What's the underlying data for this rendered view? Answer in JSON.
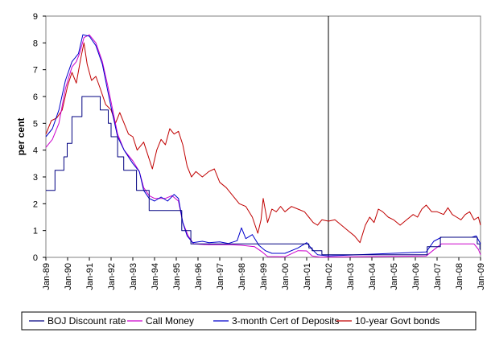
{
  "chart_data": {
    "type": "line",
    "title": "",
    "xlabel": "",
    "ylabel": "per cent",
    "ylim": [
      0,
      9
    ],
    "yticks": [
      "0",
      "1",
      "2",
      "3",
      "4",
      "5",
      "6",
      "7",
      "8",
      "9"
    ],
    "xlim": [
      1989.0,
      2009.0
    ],
    "xticks": [
      "Jan-89",
      "Jan-90",
      "Jan-91",
      "Jan-92",
      "Jan-93",
      "Jan-94",
      "Jan-95",
      "Jan-96",
      "Jan-97",
      "Jan-98",
      "Jan-99",
      "Jan-00",
      "Jan-01",
      "Jan-02",
      "Jan-03",
      "Jan-04",
      "Jan-05",
      "Jan-06",
      "Jan-07",
      "Jan-08",
      "Jan-09"
    ],
    "grid": false,
    "vertical_marker_x": 2002.0,
    "legend_position": "bottom",
    "series": [
      {
        "name": "BOJ Discount rate",
        "color": "#000080",
        "step": true,
        "points": [
          [
            1989.0,
            2.5
          ],
          [
            1989.42,
            3.25
          ],
          [
            1989.83,
            3.75
          ],
          [
            1989.98,
            4.25
          ],
          [
            1990.2,
            5.25
          ],
          [
            1990.66,
            6.0
          ],
          [
            1991.5,
            5.5
          ],
          [
            1991.87,
            5.0
          ],
          [
            1992.0,
            4.5
          ],
          [
            1992.3,
            3.75
          ],
          [
            1992.58,
            3.25
          ],
          [
            1993.17,
            2.5
          ],
          [
            1993.75,
            1.75
          ],
          [
            1995.25,
            1.0
          ],
          [
            1995.67,
            0.5
          ],
          [
            2001.1,
            0.35
          ],
          [
            2001.25,
            0.25
          ],
          [
            2001.7,
            0.1
          ],
          [
            2006.55,
            0.4
          ],
          [
            2007.15,
            0.75
          ],
          [
            2008.85,
            0.5
          ],
          [
            2008.97,
            0.3
          ],
          [
            2009.0,
            0.3
          ]
        ]
      },
      {
        "name": "Call Money",
        "color": "#cc00cc",
        "step": false,
        "points": [
          [
            1989.0,
            4.1
          ],
          [
            1989.3,
            4.4
          ],
          [
            1989.6,
            5.0
          ],
          [
            1989.9,
            6.3
          ],
          [
            1990.2,
            7.1
          ],
          [
            1990.4,
            7.3
          ],
          [
            1990.55,
            7.6
          ],
          [
            1990.75,
            8.2
          ],
          [
            1991.0,
            8.3
          ],
          [
            1991.3,
            8.0
          ],
          [
            1991.6,
            7.3
          ],
          [
            1991.85,
            6.4
          ],
          [
            1992.0,
            5.8
          ],
          [
            1992.3,
            4.6
          ],
          [
            1992.6,
            4.0
          ],
          [
            1993.0,
            3.6
          ],
          [
            1993.3,
            3.2
          ],
          [
            1993.5,
            2.6
          ],
          [
            1993.75,
            2.3
          ],
          [
            1994.0,
            2.2
          ],
          [
            1994.5,
            2.2
          ],
          [
            1994.8,
            2.3
          ],
          [
            1995.1,
            2.1
          ],
          [
            1995.3,
            1.3
          ],
          [
            1995.55,
            0.8
          ],
          [
            1995.8,
            0.5
          ],
          [
            1996.5,
            0.47
          ],
          [
            1997.5,
            0.47
          ],
          [
            1998.0,
            0.45
          ],
          [
            1998.6,
            0.4
          ],
          [
            1998.95,
            0.2
          ],
          [
            1999.2,
            0.03
          ],
          [
            2000.0,
            0.02
          ],
          [
            2000.6,
            0.25
          ],
          [
            2001.0,
            0.24
          ],
          [
            2001.25,
            0.05
          ],
          [
            2001.6,
            0.01
          ],
          [
            2006.5,
            0.05
          ],
          [
            2006.8,
            0.25
          ],
          [
            2007.2,
            0.5
          ],
          [
            2008.7,
            0.5
          ],
          [
            2008.9,
            0.3
          ],
          [
            2009.0,
            0.1
          ]
        ]
      },
      {
        "name": "3-month Cert of Deposits",
        "color": "#0000cc",
        "step": false,
        "points": [
          [
            1989.0,
            4.5
          ],
          [
            1989.3,
            4.8
          ],
          [
            1989.6,
            5.5
          ],
          [
            1989.9,
            6.6
          ],
          [
            1990.2,
            7.3
          ],
          [
            1990.5,
            7.6
          ],
          [
            1990.7,
            8.3
          ],
          [
            1991.0,
            8.25
          ],
          [
            1991.3,
            7.9
          ],
          [
            1991.6,
            7.2
          ],
          [
            1991.85,
            6.2
          ],
          [
            1992.0,
            5.6
          ],
          [
            1992.3,
            4.5
          ],
          [
            1992.6,
            4.0
          ],
          [
            1993.0,
            3.5
          ],
          [
            1993.3,
            3.2
          ],
          [
            1993.5,
            2.5
          ],
          [
            1993.75,
            2.2
          ],
          [
            1994.0,
            2.1
          ],
          [
            1994.3,
            2.25
          ],
          [
            1994.6,
            2.1
          ],
          [
            1994.9,
            2.35
          ],
          [
            1995.1,
            2.2
          ],
          [
            1995.3,
            1.3
          ],
          [
            1995.5,
            0.8
          ],
          [
            1995.75,
            0.55
          ],
          [
            1996.2,
            0.6
          ],
          [
            1996.5,
            0.55
          ],
          [
            1997.0,
            0.58
          ],
          [
            1997.4,
            0.52
          ],
          [
            1997.8,
            0.62
          ],
          [
            1998.0,
            1.1
          ],
          [
            1998.2,
            0.7
          ],
          [
            1998.5,
            0.85
          ],
          [
            1998.8,
            0.45
          ],
          [
            1999.1,
            0.25
          ],
          [
            1999.4,
            0.15
          ],
          [
            2000.0,
            0.15
          ],
          [
            2000.6,
            0.35
          ],
          [
            2001.0,
            0.55
          ],
          [
            2001.25,
            0.3
          ],
          [
            2001.5,
            0.1
          ],
          [
            2002.0,
            0.05
          ],
          [
            2006.5,
            0.2
          ],
          [
            2006.85,
            0.6
          ],
          [
            2007.2,
            0.75
          ],
          [
            2008.6,
            0.75
          ],
          [
            2008.8,
            0.8
          ],
          [
            2009.0,
            0.5
          ]
        ]
      },
      {
        "name": "10-year Govt bonds",
        "color": "#c00000",
        "step": false,
        "points": [
          [
            1989.0,
            4.6
          ],
          [
            1989.25,
            5.1
          ],
          [
            1989.5,
            5.2
          ],
          [
            1989.75,
            5.5
          ],
          [
            1990.0,
            6.4
          ],
          [
            1990.2,
            6.9
          ],
          [
            1990.4,
            6.5
          ],
          [
            1990.6,
            7.4
          ],
          [
            1990.75,
            8.0
          ],
          [
            1990.9,
            7.2
          ],
          [
            1991.1,
            6.6
          ],
          [
            1991.3,
            6.75
          ],
          [
            1991.5,
            6.3
          ],
          [
            1991.75,
            5.7
          ],
          [
            1992.0,
            5.5
          ],
          [
            1992.2,
            5.0
          ],
          [
            1992.4,
            5.4
          ],
          [
            1992.6,
            5.0
          ],
          [
            1992.8,
            4.6
          ],
          [
            1993.0,
            4.5
          ],
          [
            1993.2,
            4.0
          ],
          [
            1993.5,
            4.3
          ],
          [
            1993.7,
            3.8
          ],
          [
            1993.9,
            3.3
          ],
          [
            1994.1,
            4.0
          ],
          [
            1994.3,
            4.4
          ],
          [
            1994.5,
            4.2
          ],
          [
            1994.7,
            4.8
          ],
          [
            1994.9,
            4.6
          ],
          [
            1995.1,
            4.7
          ],
          [
            1995.3,
            4.2
          ],
          [
            1995.5,
            3.4
          ],
          [
            1995.7,
            3.0
          ],
          [
            1995.9,
            3.2
          ],
          [
            1996.2,
            3.0
          ],
          [
            1996.5,
            3.2
          ],
          [
            1996.75,
            3.3
          ],
          [
            1997.0,
            2.8
          ],
          [
            1997.3,
            2.6
          ],
          [
            1997.6,
            2.3
          ],
          [
            1997.9,
            2.0
          ],
          [
            1998.2,
            1.9
          ],
          [
            1998.5,
            1.5
          ],
          [
            1998.75,
            0.9
          ],
          [
            1998.9,
            1.4
          ],
          [
            1999.0,
            2.2
          ],
          [
            1999.2,
            1.3
          ],
          [
            1999.4,
            1.8
          ],
          [
            1999.6,
            1.7
          ],
          [
            1999.8,
            1.9
          ],
          [
            2000.0,
            1.7
          ],
          [
            2000.3,
            1.9
          ],
          [
            2000.6,
            1.8
          ],
          [
            2000.9,
            1.7
          ],
          [
            2001.1,
            1.5
          ],
          [
            2001.3,
            1.3
          ],
          [
            2001.5,
            1.2
          ],
          [
            2001.7,
            1.4
          ],
          [
            2002.0,
            1.35
          ],
          [
            2002.3,
            1.4
          ],
          [
            2002.6,
            1.2
          ],
          [
            2002.9,
            1.0
          ],
          [
            2003.2,
            0.8
          ],
          [
            2003.45,
            0.55
          ],
          [
            2003.7,
            1.2
          ],
          [
            2003.9,
            1.5
          ],
          [
            2004.1,
            1.3
          ],
          [
            2004.3,
            1.8
          ],
          [
            2004.5,
            1.7
          ],
          [
            2004.75,
            1.5
          ],
          [
            2005.0,
            1.4
          ],
          [
            2005.3,
            1.2
          ],
          [
            2005.6,
            1.4
          ],
          [
            2005.9,
            1.6
          ],
          [
            2006.1,
            1.5
          ],
          [
            2006.3,
            1.8
          ],
          [
            2006.5,
            1.95
          ],
          [
            2006.75,
            1.7
          ],
          [
            2007.0,
            1.7
          ],
          [
            2007.3,
            1.6
          ],
          [
            2007.5,
            1.85
          ],
          [
            2007.7,
            1.6
          ],
          [
            2007.9,
            1.5
          ],
          [
            2008.1,
            1.4
          ],
          [
            2008.3,
            1.6
          ],
          [
            2008.5,
            1.7
          ],
          [
            2008.7,
            1.4
          ],
          [
            2008.9,
            1.5
          ],
          [
            2009.0,
            1.2
          ]
        ]
      }
    ]
  }
}
